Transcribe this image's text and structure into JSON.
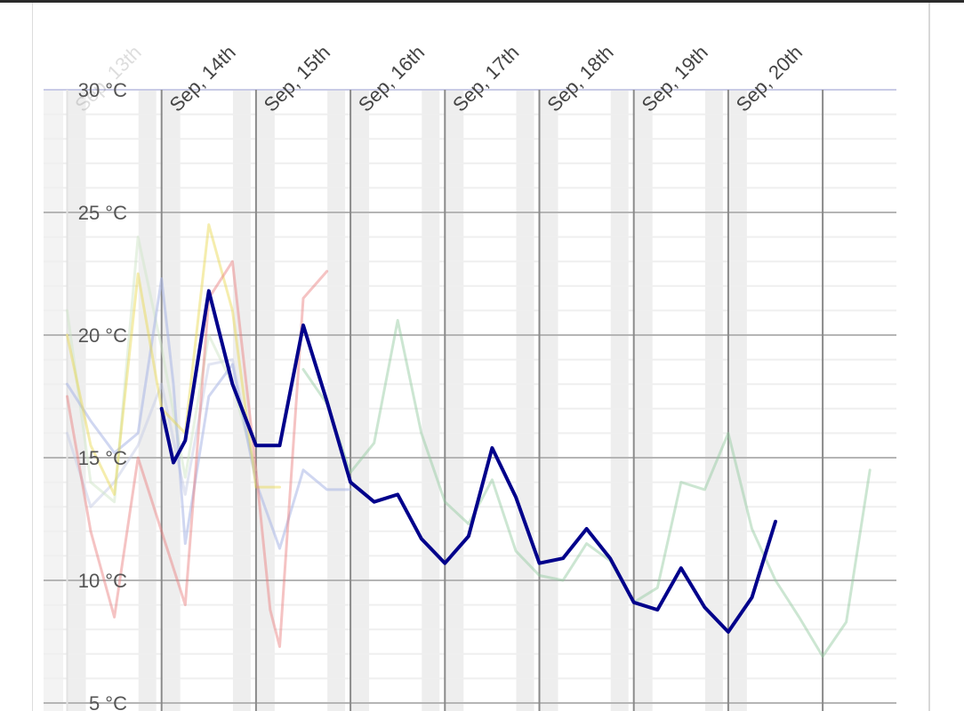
{
  "chart_data": {
    "type": "line",
    "title": "",
    "xlabel": "",
    "ylabel": "",
    "ylim": [
      5,
      30
    ],
    "y_ticks": [
      "30 °C",
      "25 °C",
      "20 °C",
      "15 °C",
      "10 °C",
      "5 °C"
    ],
    "y_tick_values": [
      30,
      25,
      20,
      15,
      10,
      5
    ],
    "x_tick_labels": [
      "Sep, 13th",
      "Sep, 14th",
      "Sep, 15th",
      "Sep, 16th",
      "Sep, 17th",
      "Sep, 18th",
      "Sep, 19th",
      "Sep, 20th"
    ],
    "x_tick_days": [
      0,
      1,
      2,
      3,
      4,
      5,
      6,
      7
    ],
    "x_unit": "days from Sep 13th 00:00",
    "grid": true,
    "series": [
      {
        "color": "#00008b",
        "opacity": 1,
        "width": 4,
        "x": [
          1.0,
          1.125,
          1.25,
          1.5,
          1.75,
          2.0,
          2.25,
          2.5,
          2.75,
          3.0,
          3.25,
          3.5,
          3.75,
          4.0,
          4.25,
          4.5,
          4.75,
          5.0,
          5.25,
          5.5,
          5.75,
          6.0,
          6.25,
          6.5,
          6.75,
          7.0,
          7.25,
          7.5
        ],
        "y": [
          17.0,
          14.8,
          15.7,
          21.8,
          18.0,
          15.5,
          15.5,
          20.4,
          17.3,
          14.0,
          13.2,
          13.5,
          11.7,
          10.7,
          11.8,
          15.4,
          13.4,
          10.7,
          10.9,
          12.1,
          10.9,
          9.1,
          8.8,
          10.5,
          8.9,
          7.9,
          9.3,
          12.4
        ]
      },
      {
        "color": "#8fc79b",
        "opacity": 0.45,
        "width": 3,
        "x": [
          2.5,
          2.75,
          3.0,
          3.25,
          3.5,
          3.75,
          4.0,
          4.25,
          4.5,
          4.75,
          5.0,
          5.25,
          5.5,
          5.75,
          6.0,
          6.25,
          6.5,
          6.75,
          7.0,
          7.25,
          7.5,
          7.75,
          8.0,
          8.25,
          8.5
        ],
        "y": [
          18.6,
          17.2,
          14.4,
          15.6,
          20.6,
          16.0,
          13.2,
          12.3,
          14.1,
          11.2,
          10.2,
          10.0,
          11.5,
          10.8,
          9.1,
          9.7,
          14.0,
          13.7,
          16.0,
          12.1,
          10.0,
          8.5,
          6.9,
          8.3,
          14.5
        ]
      },
      {
        "color": "#e87a7a",
        "opacity": 0.45,
        "width": 3,
        "x": [
          0.0,
          0.25,
          0.5,
          0.75,
          1.0,
          1.25,
          1.5,
          1.75,
          2.0,
          2.15,
          2.25,
          2.5,
          2.75
        ],
        "y": [
          17.5,
          12.0,
          8.5,
          15.0,
          12.0,
          9.0,
          21.5,
          23.0,
          14.5,
          8.8,
          7.3,
          21.5,
          22.6
        ]
      },
      {
        "color": "#e8d64a",
        "opacity": 0.45,
        "width": 3,
        "x": [
          0.0,
          0.25,
          0.5,
          0.75,
          1.0,
          1.25,
          1.5,
          1.75,
          2.0,
          2.25
        ],
        "y": [
          20.0,
          15.5,
          13.5,
          22.5,
          17.0,
          16.0,
          24.5,
          21.0,
          13.8,
          13.8
        ]
      },
      {
        "color": "#a9b6e6",
        "opacity": 0.55,
        "width": 3,
        "x": [
          0.0,
          0.25,
          0.5,
          0.75,
          1.0,
          1.125,
          1.25,
          1.5,
          1.75,
          2.0,
          2.25,
          2.5,
          2.75,
          3.0
        ],
        "y": [
          18.0,
          16.5,
          15.2,
          16.0,
          22.3,
          18.0,
          11.5,
          17.5,
          18.8,
          14.0,
          11.3,
          14.5,
          13.7,
          13.7
        ]
      },
      {
        "color": "#cfe6c8",
        "opacity": 0.5,
        "width": 3,
        "x": [
          0.0,
          0.25,
          0.5,
          0.75,
          1.0,
          1.25,
          1.5,
          1.75,
          2.0
        ],
        "y": [
          21.0,
          14.0,
          13.2,
          24.0,
          19.5,
          14.2,
          20.0,
          18.0,
          14.5
        ]
      },
      {
        "color": "#c6cbe6",
        "opacity": 0.5,
        "width": 3,
        "x": [
          0.0,
          0.25,
          0.5,
          0.75,
          1.0,
          1.25,
          1.5,
          1.75,
          2.0
        ],
        "y": [
          16.0,
          13.0,
          14.0,
          15.5,
          18.0,
          13.5,
          18.8,
          19.0,
          14.2
        ]
      }
    ]
  }
}
